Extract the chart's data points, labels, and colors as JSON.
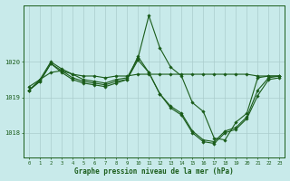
{
  "background_color": "#c8eaea",
  "grid_color": "#aacccc",
  "line_color": "#1a5c1a",
  "marker_color": "#1a5c1a",
  "title": "Graphe pression niveau de la mer (hPa)",
  "xlim": [
    -0.5,
    23.5
  ],
  "ylim": [
    1017.3,
    1021.6
  ],
  "yticks": [
    1018,
    1019,
    1020
  ],
  "xticks": [
    0,
    1,
    2,
    3,
    4,
    5,
    6,
    7,
    8,
    9,
    10,
    11,
    12,
    13,
    14,
    15,
    16,
    17,
    18,
    19,
    20,
    21,
    22,
    23
  ],
  "series": [
    {
      "x": [
        0,
        1,
        2,
        3,
        4,
        5,
        6,
        7,
        8,
        9,
        10,
        11,
        12,
        13,
        14,
        15,
        16,
        17,
        18,
        19,
        20,
        21,
        22,
        23
      ],
      "y": [
        1019.3,
        1019.5,
        1019.7,
        1019.75,
        1019.65,
        1019.6,
        1019.6,
        1019.55,
        1019.6,
        1019.6,
        1019.65,
        1019.65,
        1019.65,
        1019.65,
        1019.65,
        1019.65,
        1019.65,
        1019.65,
        1019.65,
        1019.65,
        1019.65,
        1019.6,
        1019.6,
        1019.6
      ]
    },
    {
      "x": [
        0,
        1,
        2,
        3,
        4,
        5,
        6,
        7,
        8,
        9,
        10,
        11,
        12,
        13,
        14,
        15,
        16,
        17,
        18,
        19,
        20,
        21,
        22,
        23
      ],
      "y": [
        1019.2,
        1019.5,
        1020.0,
        1019.8,
        1019.65,
        1019.5,
        1019.45,
        1019.4,
        1019.5,
        1019.55,
        1020.1,
        1021.3,
        1020.4,
        1019.85,
        1019.6,
        1018.85,
        1018.6,
        1017.85,
        1017.8,
        1018.3,
        1018.55,
        1019.55,
        1019.6,
        1019.6
      ]
    },
    {
      "x": [
        0,
        1,
        2,
        3,
        4,
        5,
        6,
        7,
        8,
        9,
        10,
        11,
        12,
        13,
        14,
        15,
        16,
        17,
        18,
        19,
        20,
        21,
        22,
        23
      ],
      "y": [
        1019.2,
        1019.45,
        1019.95,
        1019.75,
        1019.55,
        1019.45,
        1019.4,
        1019.35,
        1019.45,
        1019.5,
        1020.05,
        1019.7,
        1019.1,
        1018.75,
        1018.55,
        1018.05,
        1017.8,
        1017.75,
        1018.05,
        1018.15,
        1018.45,
        1019.2,
        1019.55,
        1019.6
      ]
    },
    {
      "x": [
        0,
        1,
        2,
        3,
        4,
        5,
        6,
        7,
        8,
        9,
        10,
        11,
        12,
        13,
        14,
        15,
        16,
        17,
        18,
        19,
        20,
        21,
        22,
        23
      ],
      "y": [
        1019.2,
        1019.45,
        1019.95,
        1019.7,
        1019.5,
        1019.4,
        1019.35,
        1019.3,
        1019.4,
        1019.5,
        1020.15,
        1019.7,
        1019.1,
        1018.7,
        1018.5,
        1018.0,
        1017.75,
        1017.7,
        1018.0,
        1018.1,
        1018.4,
        1019.05,
        1019.5,
        1019.55
      ]
    }
  ]
}
